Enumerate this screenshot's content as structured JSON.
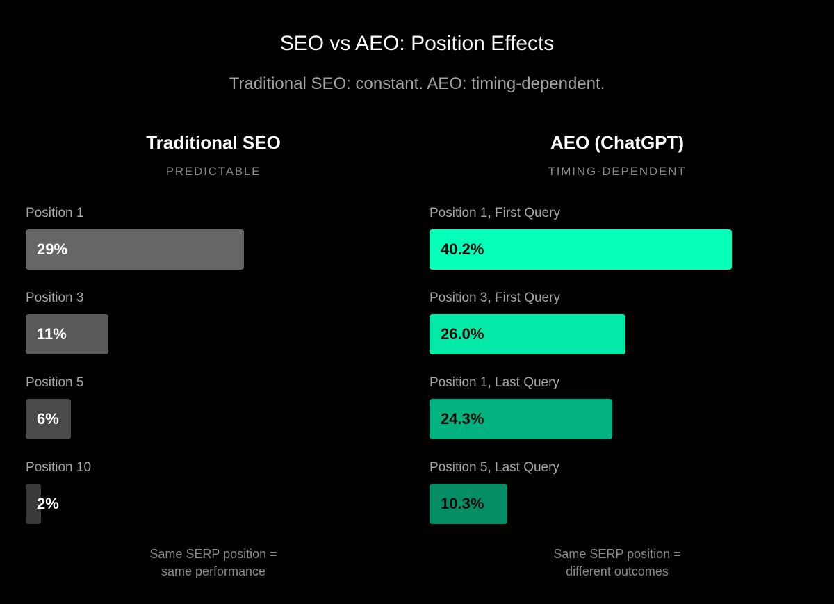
{
  "header": {
    "title": "SEO vs AEO: Position Effects",
    "subtitle": "Traditional SEO: constant. AEO: timing-dependent."
  },
  "panels": {
    "left": {
      "title": "Traditional SEO",
      "tag": "PREDICTABLE",
      "footnote_line1": "Same SERP position =",
      "footnote_line2": "same performance"
    },
    "right": {
      "title": "AEO (ChatGPT)",
      "tag": "TIMING-DEPENDENT",
      "footnote_line1": "Same SERP position =",
      "footnote_line2": "different outcomes"
    }
  },
  "chart_data": [
    {
      "type": "bar",
      "orientation": "horizontal",
      "title": "Traditional SEO",
      "subtitle": "PREDICTABLE",
      "categories": [
        "Position 1",
        "Position 3",
        "Position 5",
        "Position 10"
      ],
      "values": [
        29,
        11,
        6,
        2
      ],
      "value_labels": [
        "29%",
        "11%",
        "6%",
        "2%"
      ],
      "unit": "%",
      "colors": [
        "#666666",
        "#5a5a5a",
        "#4a4a4a",
        "#3a3a3a"
      ],
      "value_text_color": "#ffffff",
      "grid": false
    },
    {
      "type": "bar",
      "orientation": "horizontal",
      "title": "AEO (ChatGPT)",
      "subtitle": "TIMING-DEPENDENT",
      "categories": [
        "Position 1, First Query",
        "Position 3, First Query",
        "Position 1, Last Query",
        "Position 5, Last Query"
      ],
      "values": [
        40.2,
        26.0,
        24.3,
        10.3
      ],
      "value_labels": [
        "40.2%",
        "26.0%",
        "24.3%",
        "10.3%"
      ],
      "unit": "%",
      "colors": [
        "#05ffb8",
        "#02e9a8",
        "#03b37f",
        "#058d66"
      ],
      "value_text_color": "#0a0a0a",
      "grid": false
    }
  ]
}
